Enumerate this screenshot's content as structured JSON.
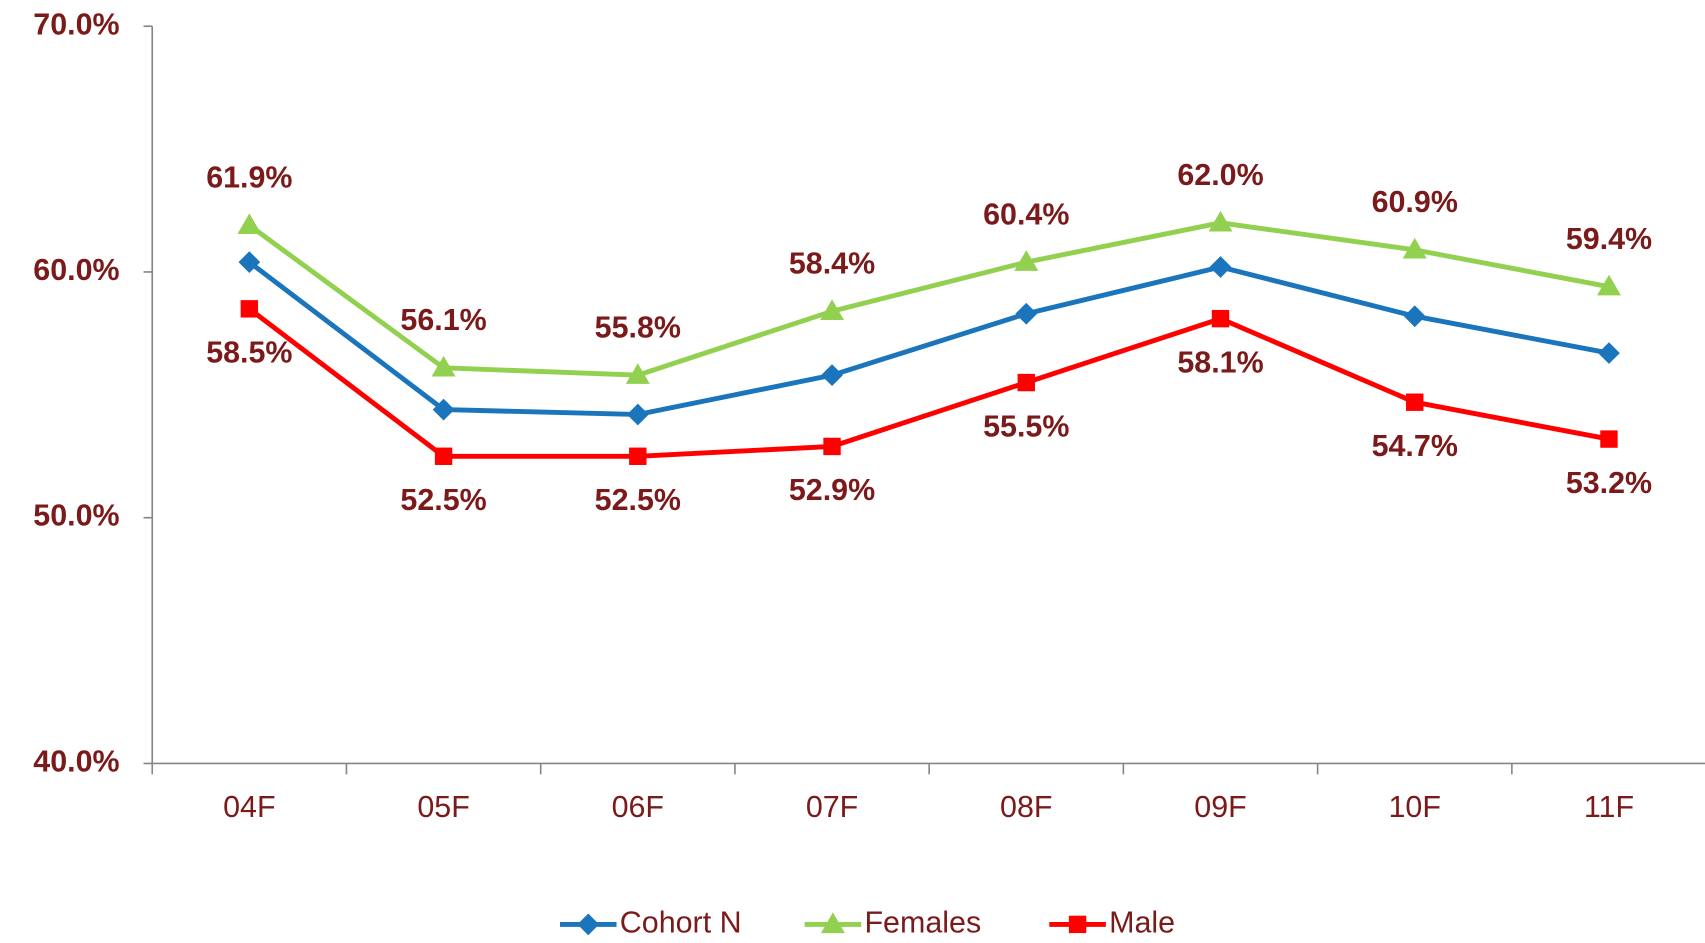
{
  "chart_data": {
    "type": "line",
    "categories": [
      "04F",
      "05F",
      "06F",
      "07F",
      "08F",
      "09F",
      "10F",
      "11F"
    ],
    "series": [
      {
        "name": "Cohort N",
        "color": "#1a75bc",
        "marker": "diamond",
        "values": [
          60.4,
          54.4,
          54.2,
          55.8,
          58.3,
          60.2,
          58.2,
          56.7
        ]
      },
      {
        "name": "Females",
        "color": "#92d050",
        "marker": "triangle",
        "values": [
          61.9,
          56.1,
          55.8,
          58.4,
          60.4,
          62.0,
          60.9,
          59.4
        ],
        "value_labels": [
          "61.9%",
          "56.1%",
          "55.8%",
          "58.4%",
          "60.4%",
          "62.0%",
          "60.9%",
          "59.4%"
        ]
      },
      {
        "name": "Male",
        "color": "#ff0000",
        "marker": "square",
        "values": [
          58.5,
          52.5,
          52.5,
          52.9,
          55.5,
          58.1,
          54.7,
          53.2
        ],
        "value_labels": [
          "58.5%",
          "52.5%",
          "52.5%",
          "52.9%",
          "55.5%",
          "58.1%",
          "54.7%",
          "53.2%"
        ]
      }
    ],
    "ylim": [
      40,
      70
    ],
    "yticks": [
      {
        "value": 40,
        "label": "40.0%"
      },
      {
        "value": 50,
        "label": "50.0%"
      },
      {
        "value": 60,
        "label": "60.0%"
      },
      {
        "value": 70,
        "label": "70.0%"
      }
    ],
    "legend": "bottom"
  }
}
